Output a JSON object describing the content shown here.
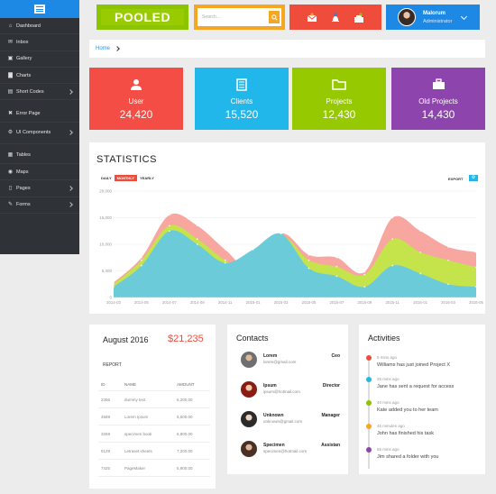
{
  "sidebar": {
    "items": [
      {
        "label": "Dashboard",
        "icon": "home-icon",
        "arrow": false
      },
      {
        "label": "Inbox",
        "icon": "envelope-icon",
        "arrow": false
      },
      {
        "label": "Gallery",
        "icon": "image-icon",
        "arrow": false
      },
      {
        "label": "Charts",
        "icon": "bar-chart-icon",
        "arrow": false
      },
      {
        "label": "Short Codes",
        "icon": "code-icon",
        "arrow": true
      },
      {
        "label": "Error Page",
        "icon": "error-icon",
        "arrow": false
      },
      {
        "label": "UI Components",
        "icon": "gear-icon",
        "arrow": true
      },
      {
        "label": "Tables",
        "icon": "table-icon",
        "arrow": false
      },
      {
        "label": "Maps",
        "icon": "map-marker-icon",
        "arrow": false
      },
      {
        "label": "Pages",
        "icon": "file-icon",
        "arrow": true
      },
      {
        "label": "Forms",
        "icon": "edit-icon",
        "arrow": true
      }
    ]
  },
  "header": {
    "logo": "POOLED",
    "search_placeholder": "Search...",
    "user": {
      "name": "Malorum",
      "role": "Administrator"
    }
  },
  "breadcrumb": {
    "home": "Home"
  },
  "stats": [
    {
      "label": "User",
      "value": "24,420",
      "color": "#f44d45",
      "icon": "user-icon"
    },
    {
      "label": "Clients",
      "value": "15,520",
      "color": "#22b7ea",
      "icon": "document-icon"
    },
    {
      "label": "Projects",
      "value": "12,430",
      "color": "#97c901",
      "icon": "folder-icon"
    },
    {
      "label": "Old Projects",
      "value": "14,430",
      "color": "#8e44ad",
      "icon": "briefcase-icon"
    }
  ],
  "statistics": {
    "title": "STATISTICS",
    "tabs": [
      "DAILY",
      "MONTHLY",
      "YEARLY"
    ],
    "active_tab": "MONTHLY",
    "export_label": "EXPORT"
  },
  "chart_data": {
    "type": "area",
    "x": [
      "2014-03",
      "2014-05",
      "2014-07",
      "2014-09",
      "2014-11",
      "2015-01",
      "2015-03",
      "2015-05",
      "2015-07",
      "2015-09",
      "2015-11",
      "2016-01",
      "2016-03",
      "2016-05"
    ],
    "ylim": [
      0,
      20000
    ],
    "yticks": [
      "0",
      "5,000",
      "10,000",
      "15,000",
      "20,000"
    ],
    "series": [
      {
        "color": "#f7a6a0",
        "values": [
          2800,
          7500,
          15500,
          13500,
          9000,
          5000,
          12000,
          8000,
          7500,
          4800,
          15000,
          12500,
          9500,
          8500
        ]
      },
      {
        "color": "#c5e34a",
        "values": [
          2500,
          7000,
          13500,
          11000,
          7000,
          4800,
          11500,
          7000,
          5800,
          4300,
          11000,
          8500,
          7000,
          5700
        ]
      },
      {
        "color": "#6ccbd9",
        "values": [
          2000,
          6000,
          12500,
          10000,
          6500,
          9000,
          12000,
          5500,
          4000,
          2000,
          6000,
          4500,
          2500,
          2000
        ]
      }
    ],
    "grid": true
  },
  "revenue": {
    "title": "August 2016",
    "amount": "$21,235",
    "report": "REPORT",
    "columns": [
      "ID",
      "NAME",
      "AMOUNT"
    ],
    "rows": [
      [
        "2356",
        "dummy text",
        "6,200.00"
      ],
      [
        "4589",
        "Lorem Ipsum",
        "6,500.00"
      ],
      [
        "3269",
        "specimen book",
        "6,800.00"
      ],
      [
        "5129",
        "Letraset sheets",
        "7,200.00"
      ],
      [
        "7425",
        "PageMaker",
        "5,900.00"
      ]
    ]
  },
  "contacts": {
    "title": "Contacts",
    "items": [
      {
        "name": "Lorem",
        "email": "lorem@gmail.com",
        "role": "Ceo"
      },
      {
        "name": "Ipsum",
        "email": "ipsum@hotmail.com",
        "role": "Director"
      },
      {
        "name": "Unknown",
        "email": "unknown@gmail.com",
        "role": "Manager"
      },
      {
        "name": "Specimen",
        "email": "specimen@hotmail.com",
        "role": "Assistan"
      }
    ]
  },
  "activities": {
    "title": "Activities",
    "items": [
      {
        "time": "5 mins ago",
        "text": "Williams has just joined Project X",
        "color": "#ef4c3c"
      },
      {
        "time": "25 mins ago",
        "text": "Jane has sent a request for access",
        "color": "#27b4e8"
      },
      {
        "time": "40 mins ago",
        "text": "Kate added you to her team",
        "color": "#8bc400"
      },
      {
        "time": "45 minutes ago",
        "text": "John has finished his task",
        "color": "#f5a623"
      },
      {
        "time": "55 mins ago",
        "text": "Jim shared a folder with you",
        "color": "#8e44ad"
      }
    ]
  }
}
